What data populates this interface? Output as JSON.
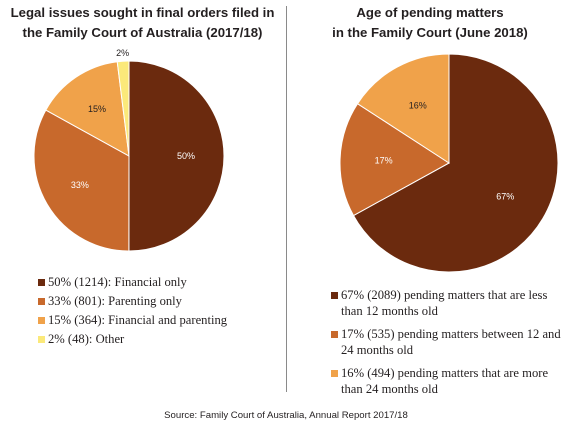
{
  "charts": [
    {
      "title_lines": [
        "Legal issues sought in final orders filed in",
        "the Family Court of Australia (2017/18)"
      ],
      "slice_labels": [
        "50%",
        "33%",
        "15%",
        "2%"
      ],
      "legend": [
        "50% (1214): Financial only",
        "33% (801): Parenting only",
        "15% (364): Financial and parenting",
        "2% (48): Other"
      ]
    },
    {
      "title_lines": [
        "Age of pending matters",
        "in the Family Court (June 2018)"
      ],
      "slice_labels": [
        "67%",
        "17%",
        "16%"
      ],
      "legend": [
        "67% (2089) pending matters that are less than 12 months old",
        "17% (535) pending matters between 12 and 24 months old",
        "16% (494) pending matters that are more than 24 months old"
      ]
    }
  ],
  "source": "Source: Family Court of Australia, Annual Report 2017/18",
  "chart_data": [
    {
      "type": "pie",
      "title": "Legal issues sought in final orders filed in the Family Court of Australia (2017/18)",
      "categories": [
        "Financial only",
        "Parenting only",
        "Financial and parenting",
        "Other"
      ],
      "values": [
        1214,
        801,
        364,
        48
      ],
      "percentages": [
        50,
        33,
        15,
        2
      ],
      "colors": [
        "#6b2a0e",
        "#c8692c",
        "#f0a24a",
        "#fbe97a"
      ],
      "label_colors": [
        "#ffffff",
        "#ffffff",
        "#231f20",
        "#231f20"
      ],
      "legend_position": "bottom"
    },
    {
      "type": "pie",
      "title": "Age of pending matters in the Family Court (June 2018)",
      "categories": [
        "less than 12 months old",
        "between 12 and 24 months old",
        "more than 24 months old"
      ],
      "values": [
        2089,
        535,
        494
      ],
      "percentages": [
        67,
        17,
        16
      ],
      "colors": [
        "#6b2a0e",
        "#c8692c",
        "#f0a24a"
      ],
      "label_colors": [
        "#ffffff",
        "#ffffff",
        "#231f20"
      ],
      "legend_position": "bottom"
    }
  ]
}
